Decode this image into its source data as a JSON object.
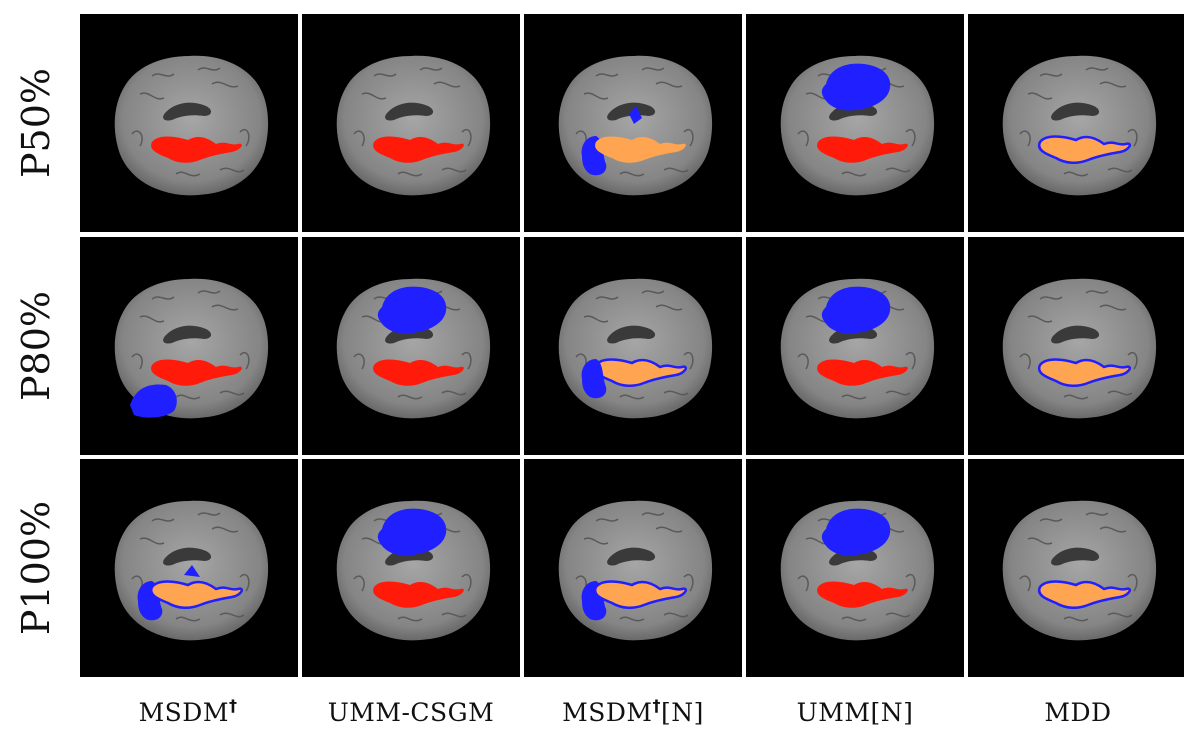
{
  "rows": [
    {
      "label": "P50%"
    },
    {
      "label": "P80%"
    },
    {
      "label": "P100%"
    }
  ],
  "columns": [
    {
      "name": "MSDM",
      "sup": "†",
      "suffix": ""
    },
    {
      "name": "UMM-CSGM",
      "sup": "",
      "suffix": ""
    },
    {
      "name": "MSDM",
      "sup": "†",
      "suffix": "[N]"
    },
    {
      "name": "UMM[N]",
      "sup": "",
      "suffix": ""
    },
    {
      "name": "MDD",
      "sup": "",
      "suffix": ""
    }
  ],
  "colors": {
    "red": "#ff1a0a",
    "blue": "#1f1fff",
    "orange": "#ffa552",
    "background": "#000000",
    "brain": "#8a8a8a"
  }
}
